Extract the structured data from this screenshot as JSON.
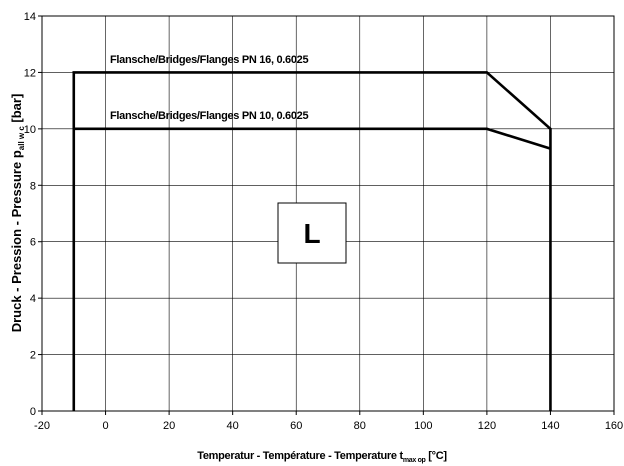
{
  "chart_data": {
    "type": "line",
    "xlim": [
      -20,
      160
    ],
    "ylim": [
      0,
      14
    ],
    "x_ticks": [
      -20,
      0,
      20,
      40,
      60,
      80,
      100,
      120,
      140,
      160
    ],
    "y_ticks": [
      0,
      2,
      4,
      6,
      8,
      10,
      12,
      14
    ],
    "grid": true,
    "xlabel": {
      "main": "Temperatur - Température - Temperature t",
      "sub": "max op",
      "unit": " [°C]"
    },
    "ylabel": {
      "main": "Druck - Pression - Pressure p",
      "sub": "all w c",
      "unit": " [bar]"
    },
    "series": [
      {
        "name": "Flansche/Bridges/Flanges PN 16, 0.6025",
        "x": [
          -10,
          -10,
          120,
          140,
          140
        ],
        "y": [
          0,
          12,
          12,
          10,
          0
        ]
      },
      {
        "name": "Flansche/Bridges/Flanges PN 10, 0.6025",
        "x": [
          -10,
          120,
          140
        ],
        "y": [
          10,
          10,
          9.3
        ]
      }
    ],
    "region_label": "L",
    "colors": {
      "line": "#000000",
      "grid": "#000000",
      "background": "#ffffff"
    }
  }
}
